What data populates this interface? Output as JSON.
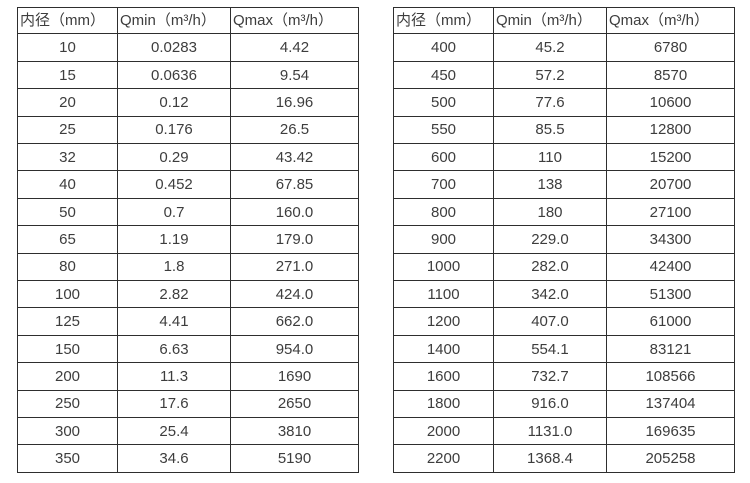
{
  "colors": {
    "background": "#ffffff",
    "border": "#2e2e2e",
    "text": "#3d3d3d"
  },
  "tables": [
    {
      "name": "flow-table-small-diameters",
      "headers": [
        "内径（mm）",
        "Qmin（m³/h）",
        "Qmax（m³/h）"
      ],
      "rows": [
        [
          "10",
          "0.0283",
          "4.42"
        ],
        [
          "15",
          "0.0636",
          "9.54"
        ],
        [
          "20",
          "0.12",
          "16.96"
        ],
        [
          "25",
          "0.176",
          "26.5"
        ],
        [
          "32",
          "0.29",
          "43.42"
        ],
        [
          "40",
          "0.452",
          "67.85"
        ],
        [
          "50",
          "0.7",
          "160.0"
        ],
        [
          "65",
          "1.19",
          "179.0"
        ],
        [
          "80",
          "1.8",
          "271.0"
        ],
        [
          "100",
          "2.82",
          "424.0"
        ],
        [
          "125",
          "4.41",
          "662.0"
        ],
        [
          "150",
          "6.63",
          "954.0"
        ],
        [
          "200",
          "11.3",
          "1690"
        ],
        [
          "250",
          "17.6",
          "2650"
        ],
        [
          "300",
          "25.4",
          "3810"
        ],
        [
          "350",
          "34.6",
          "5190"
        ]
      ]
    },
    {
      "name": "flow-table-large-diameters",
      "headers": [
        "内径（mm）",
        "Qmin（m³/h）",
        "Qmax（m³/h）"
      ],
      "rows": [
        [
          "400",
          "45.2",
          "6780"
        ],
        [
          "450",
          "57.2",
          "8570"
        ],
        [
          "500",
          "77.6",
          "10600"
        ],
        [
          "550",
          "85.5",
          "12800"
        ],
        [
          "600",
          "110",
          "15200"
        ],
        [
          "700",
          "138",
          "20700"
        ],
        [
          "800",
          "180",
          "27100"
        ],
        [
          "900",
          "229.0",
          "34300"
        ],
        [
          "1000",
          "282.0",
          "42400"
        ],
        [
          "1100",
          "342.0",
          "51300"
        ],
        [
          "1200",
          "407.0",
          "61000"
        ],
        [
          "1400",
          "554.1",
          "83121"
        ],
        [
          "1600",
          "732.7",
          "108566"
        ],
        [
          "1800",
          "916.0",
          "137404"
        ],
        [
          "2000",
          "1131.0",
          "169635"
        ],
        [
          "2200",
          "1368.4",
          "205258"
        ]
      ]
    }
  ]
}
